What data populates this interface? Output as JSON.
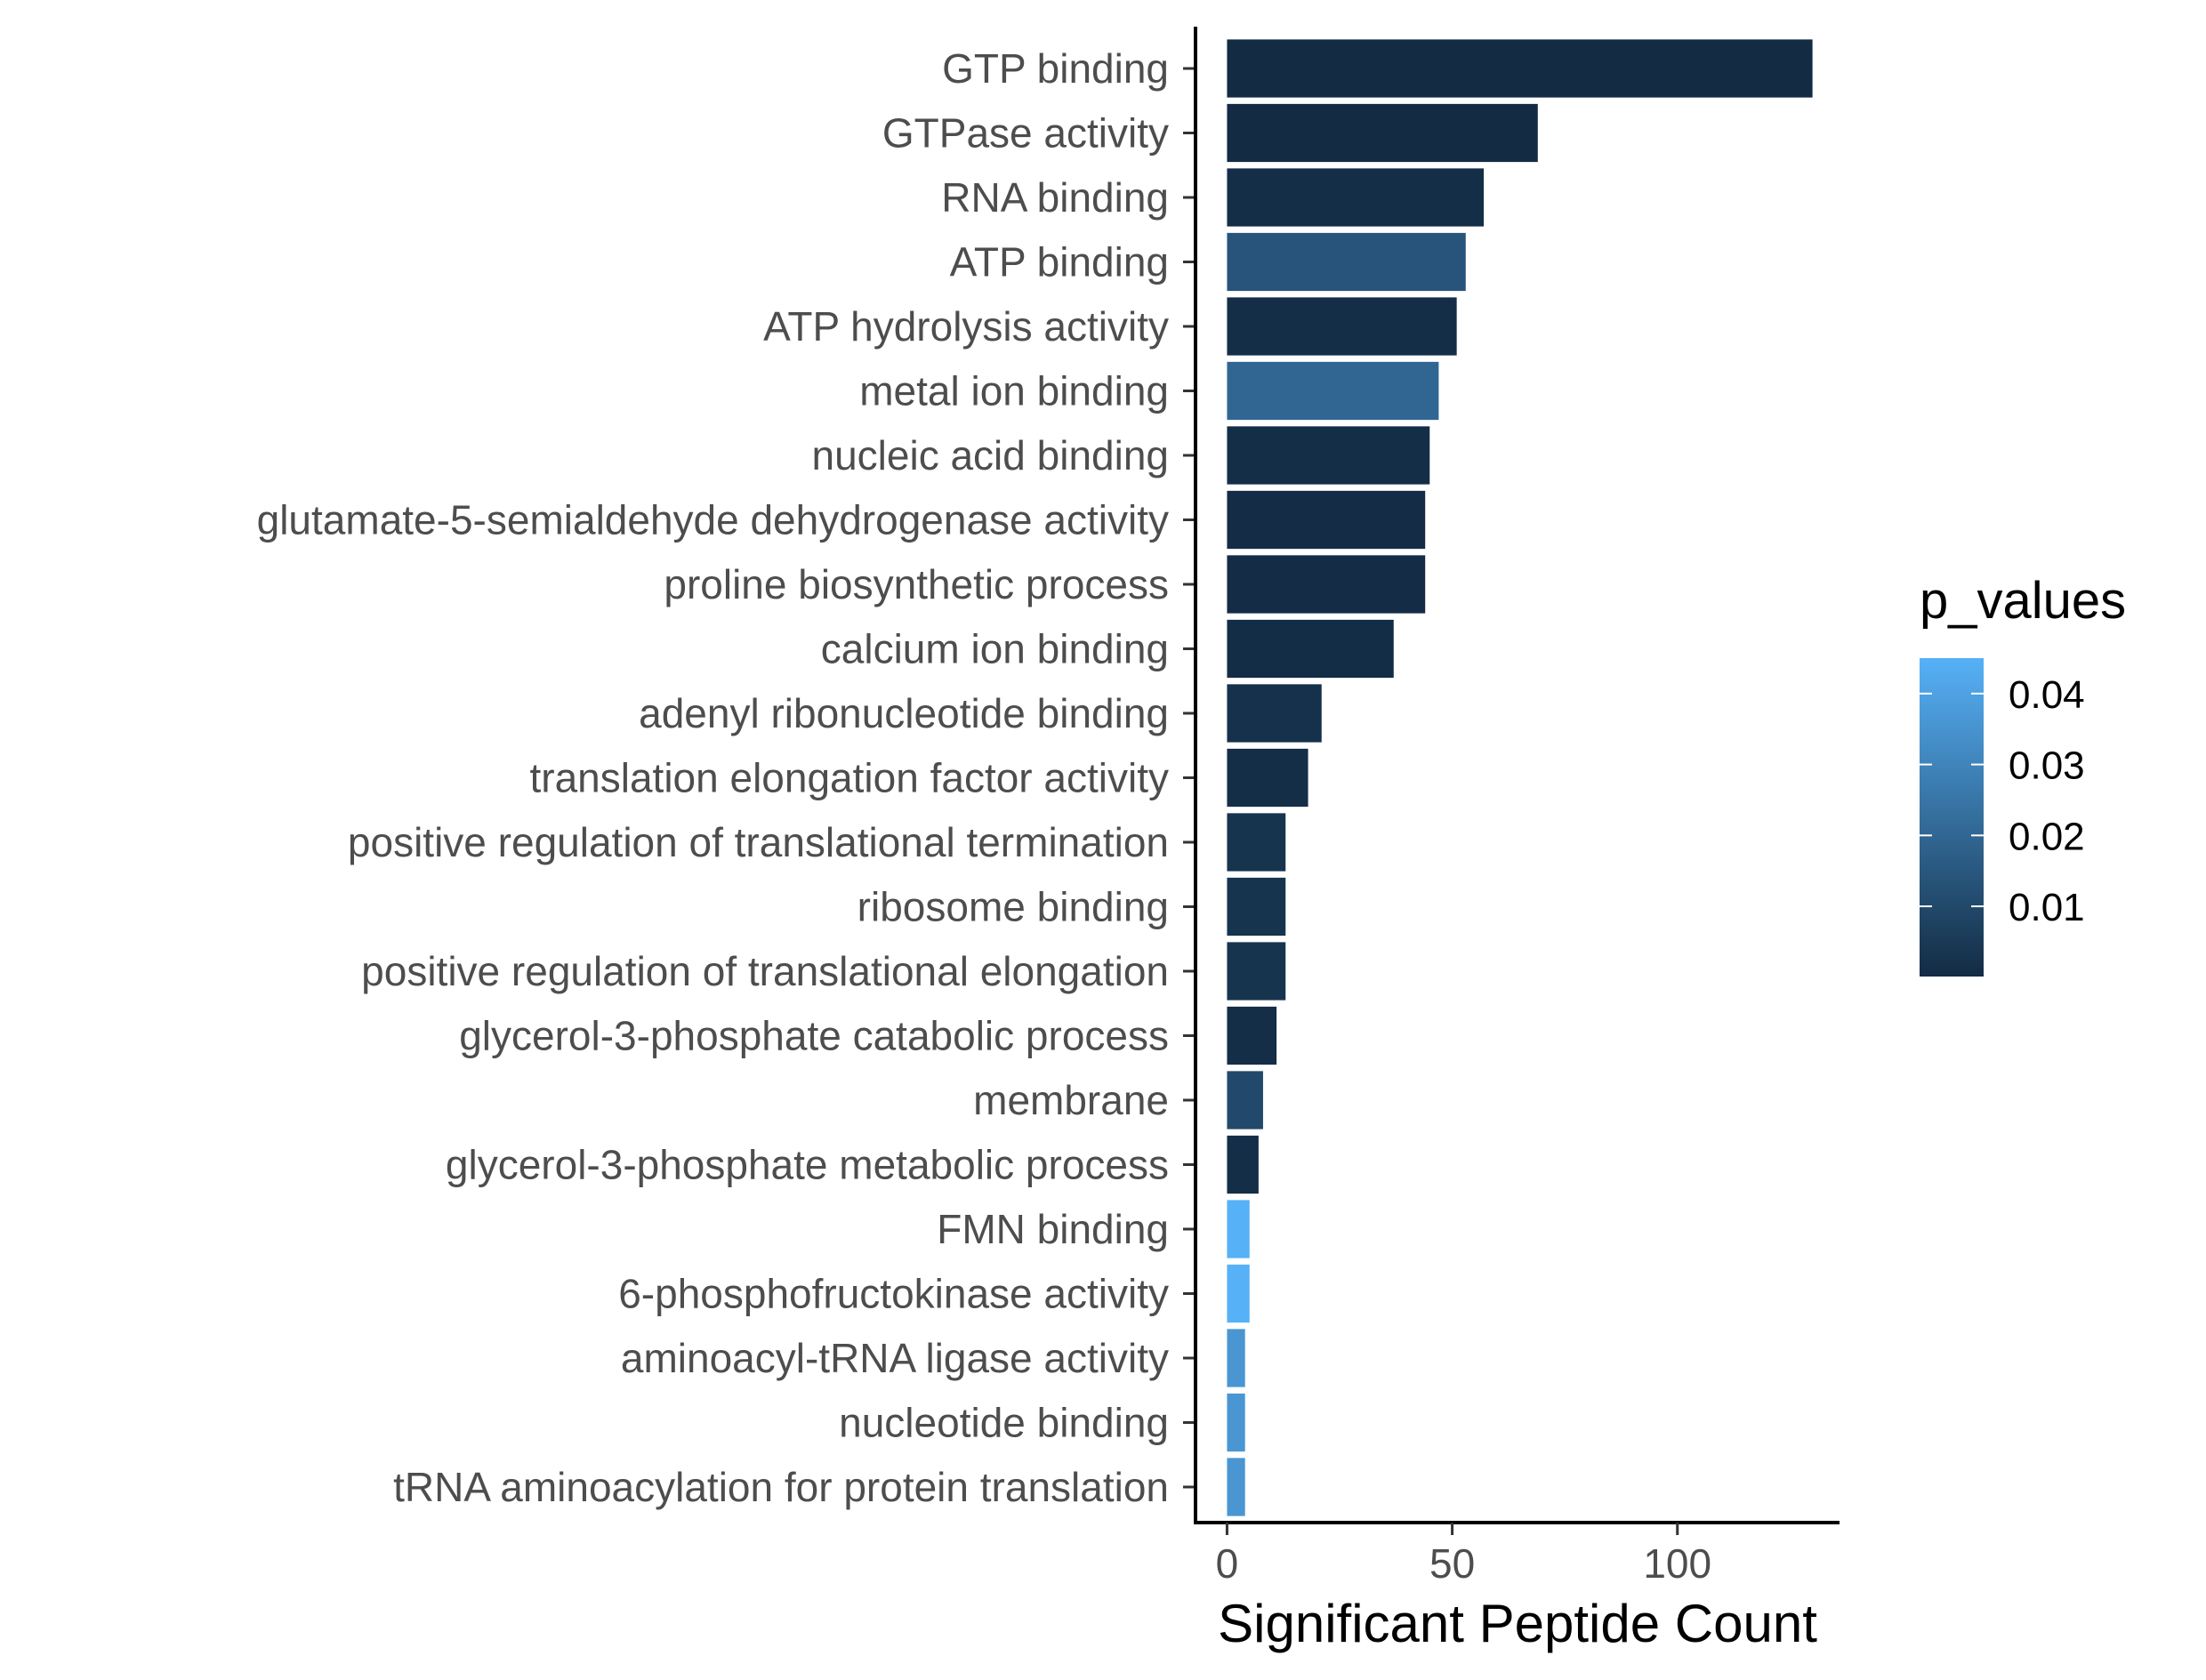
{
  "chart_data": {
    "type": "bar",
    "orientation": "horizontal",
    "xlabel": "Significant Peptide Count",
    "ylabel": "",
    "xlim": [
      -7,
      136
    ],
    "xticks": [
      0,
      50,
      100
    ],
    "grid": false,
    "legend": {
      "title": "p_values",
      "placement": "right",
      "range": [
        0.0001,
        0.045
      ],
      "ticks": [
        {
          "value": 0.01,
          "label": "0.01"
        },
        {
          "value": 0.02,
          "label": "0.02"
        },
        {
          "value": 0.03,
          "label": "0.03"
        },
        {
          "value": 0.04,
          "label": "0.04"
        }
      ],
      "low_color": "#132B43",
      "high_color": "#56B1F7"
    },
    "bars": [
      {
        "category": "GTP binding",
        "value": 130,
        "p_value": 0.0001
      },
      {
        "category": "GTPase activity",
        "value": 69,
        "p_value": 0.0001
      },
      {
        "category": "RNA binding",
        "value": 57,
        "p_value": 0.001
      },
      {
        "category": "ATP binding",
        "value": 53,
        "p_value": 0.014
      },
      {
        "category": "ATP hydrolysis activity",
        "value": 51,
        "p_value": 0.001
      },
      {
        "category": "metal ion binding",
        "value": 47,
        "p_value": 0.02
      },
      {
        "category": "nucleic acid binding",
        "value": 45,
        "p_value": 0.001
      },
      {
        "category": "glutamate-5-semialdehyde dehydrogenase activity",
        "value": 44,
        "p_value": 0.0005
      },
      {
        "category": "proline biosynthetic process",
        "value": 44,
        "p_value": 0.0005
      },
      {
        "category": "calcium ion binding",
        "value": 37,
        "p_value": 0.0008
      },
      {
        "category": "adenyl ribonucleotide binding",
        "value": 21,
        "p_value": 0.002
      },
      {
        "category": "translation elongation factor activity",
        "value": 18,
        "p_value": 0.001
      },
      {
        "category": "positive regulation of translational termination",
        "value": 13,
        "p_value": 0.003
      },
      {
        "category": "ribosome binding",
        "value": 13,
        "p_value": 0.003
      },
      {
        "category": "positive regulation of translational elongation",
        "value": 13,
        "p_value": 0.003
      },
      {
        "category": "glycerol-3-phosphate catabolic process",
        "value": 11,
        "p_value": 0.001
      },
      {
        "category": "membrane",
        "value": 8,
        "p_value": 0.01
      },
      {
        "category": "glycerol-3-phosphate metabolic process",
        "value": 7,
        "p_value": 0.001
      },
      {
        "category": "FMN binding",
        "value": 5,
        "p_value": 0.045
      },
      {
        "category": "6-phosphofructokinase activity",
        "value": 5,
        "p_value": 0.045
      },
      {
        "category": "aminoacyl-tRNA ligase activity",
        "value": 4,
        "p_value": 0.036
      },
      {
        "category": "nucleotide binding",
        "value": 4,
        "p_value": 0.036
      },
      {
        "category": "tRNA aminoacylation for protein translation",
        "value": 4,
        "p_value": 0.036
      }
    ]
  }
}
